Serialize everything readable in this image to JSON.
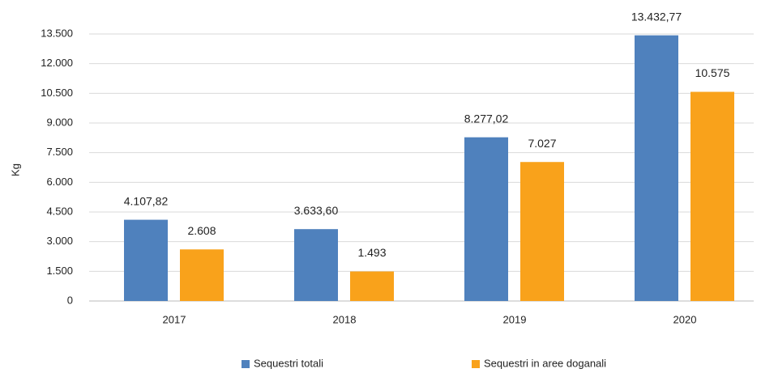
{
  "chart_data": {
    "type": "bar",
    "y_label": "Kg",
    "categories": [
      "2017",
      "2018",
      "2019",
      "2020"
    ],
    "series": [
      {
        "name": "Sequestri totali",
        "color": "#4f81bd",
        "values": [
          4107.82,
          3633.6,
          8277.02,
          13432.77
        ],
        "value_labels": [
          "4.107,82",
          "3.633,60",
          "8.277,02",
          "13.432,77"
        ]
      },
      {
        "name": "Sequestri in aree doganali",
        "color": "#f9a21b",
        "values": [
          2608,
          1493,
          7027,
          10575
        ],
        "value_labels": [
          "2.608",
          "1.493",
          "7.027",
          "10.575"
        ]
      }
    ],
    "ylim": [
      0,
      13500
    ],
    "yticks": [
      0,
      {
        "value": 1500,
        "label": "1.500"
      },
      {
        "value": 3000,
        "label": "3.000"
      },
      {
        "value": 4500,
        "label": "4.500"
      },
      {
        "value": 6000,
        "label": "6.000"
      },
      {
        "value": 7500,
        "label": "7.500"
      },
      {
        "value": 9000,
        "label": "9.000"
      },
      {
        "value": 10500,
        "label": "10.500"
      },
      {
        "value": 12000,
        "label": "12.000"
      },
      {
        "value": 13500,
        "label": "13.500"
      }
    ],
    "grid": true,
    "legend": "bottom"
  }
}
